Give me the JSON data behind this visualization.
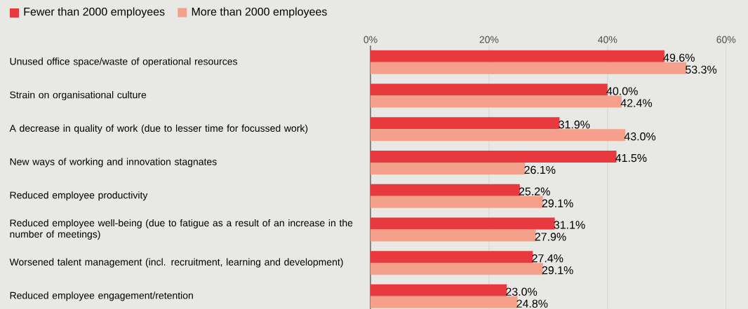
{
  "chart_data": {
    "type": "bar",
    "orientation": "horizontal",
    "legend": "top left",
    "grid": "x",
    "categories": [
      "Unused office space/waste of operational resources",
      "Strain on organisational culture",
      "A decrease in quality of work (due to lesser time for focussed work)",
      "New ways of working and innovation stagnates",
      "Reduced employee productivity",
      "Reduced employee well-being (due to fatigue as a result of an increase in the number of meetings)",
      "Worsened talent management (incl. recruitment, learning and development)",
      "Reduced employee engagement/retention"
    ],
    "series": [
      {
        "name": "Fewer than 2000 employees",
        "color": "#e8393f",
        "values": [
          49.6,
          40.0,
          31.9,
          41.5,
          25.2,
          31.1,
          27.4,
          23.0
        ],
        "value_labels": [
          "49.6%",
          "40.0%",
          "31.9%",
          "41.5%",
          "25.2%",
          "31.1%",
          "27.4%",
          "23.0%"
        ]
      },
      {
        "name": "More than 2000 employees",
        "color": "#f5a08b",
        "values": [
          53.3,
          42.4,
          43.0,
          26.1,
          29.1,
          27.9,
          29.1,
          24.8
        ],
        "value_labels": [
          "53.3%",
          "42.4%",
          "43.0%",
          "26.1%",
          "29.1%",
          "27.9%",
          "29.1%",
          "24.8%"
        ]
      }
    ],
    "xlim": [
      0,
      63.7
    ],
    "xticks": [
      {
        "value": 0,
        "label": "0%"
      },
      {
        "value": 20,
        "label": "20%"
      },
      {
        "value": 40,
        "label": "40%"
      },
      {
        "value": 60,
        "label": "60%"
      }
    ]
  }
}
